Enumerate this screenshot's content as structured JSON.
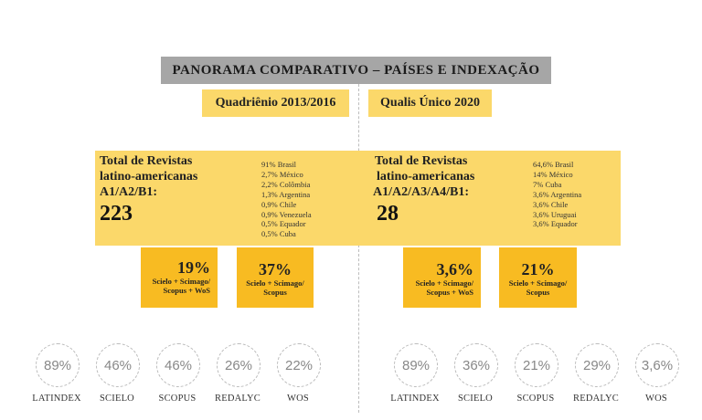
{
  "title": "PANORAMA COMPARATIVO – PAÍSES E INDEXAÇÃO",
  "left": {
    "period": "Quadriênio 2013/2016",
    "total_label_1": "Total de Revistas",
    "total_label_2": "latino-americanas",
    "total_label_3": "A1/A2/B1:",
    "total_value": "223",
    "countries": [
      "91% Brasil",
      "2,7% México",
      "2,2% Colômbia",
      "1,3% Argentina",
      "0,9% Chile",
      "0,9% Venezuela",
      "0,5% Equador",
      "0,5% Cuba"
    ],
    "box1_pct": "19%",
    "box1_sub": [
      "Scielo + Scimago/",
      "Scopus + WoS"
    ],
    "box2_pct": "37%",
    "box2_sub": [
      "Scielo + Scimago/",
      "Scopus"
    ],
    "circles": [
      {
        "value": "89%",
        "label": "LATINDEX"
      },
      {
        "value": "46%",
        "label": "SCIELO"
      },
      {
        "value": "46%",
        "label": "SCOPUS"
      },
      {
        "value": "26%",
        "label": "REDALYC"
      },
      {
        "value": "22%",
        "label": "WOS"
      }
    ]
  },
  "right": {
    "period": "Qualis Único 2020",
    "total_label_1": "Total de Revistas",
    "total_label_2": "latino-americanas",
    "total_label_3": "A1/A2/A3/A4/B1:",
    "total_value": "28",
    "countries": [
      "64,6% Brasil",
      "14% México",
      "7% Cuba",
      "3,6% Argentina",
      "3,6% Chile",
      "3,6% Uruguai",
      "3,6% Equador"
    ],
    "box1_pct": "3,6%",
    "box1_sub": [
      "Scielo + Scimago/",
      "Scopus + WoS"
    ],
    "box2_pct": "21%",
    "box2_sub": [
      "Scielo + Scimago/",
      "Scopus"
    ],
    "circles": [
      {
        "value": "89%",
        "label": "LATINDEX"
      },
      {
        "value": "36%",
        "label": "SCIELO"
      },
      {
        "value": "21%",
        "label": "SCOPUS"
      },
      {
        "value": "29%",
        "label": "REDALYC"
      },
      {
        "value": "3,6%",
        "label": "WOS"
      }
    ]
  }
}
